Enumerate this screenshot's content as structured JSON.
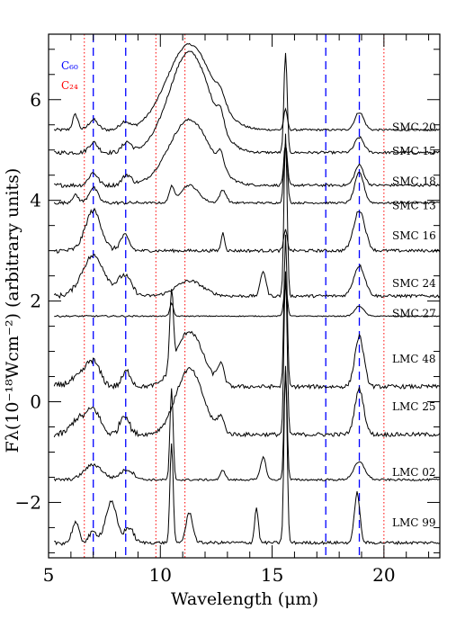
{
  "chart_data": {
    "type": "line",
    "title": "",
    "xlabel": "Wavelength (μm)",
    "ylabel": "Fλ(10⁻¹⁸Wcm⁻²) (arbitrary units)",
    "xlim": [
      5,
      22.5
    ],
    "ylim": [
      -3.1,
      7.3
    ],
    "x_ticks": [
      5,
      10,
      15,
      20
    ],
    "y_ticks": [
      -2,
      0,
      2,
      4,
      6
    ],
    "x_tick_labels": [
      "5",
      "10",
      "15",
      "20"
    ],
    "y_tick_labels": [
      "−2",
      "0",
      "2",
      "4",
      "6"
    ],
    "grid": false,
    "legend": {
      "placement": "top-left",
      "entries": [
        {
          "name": "C₆₀",
          "color": "#0000ff",
          "style": "dashed"
        },
        {
          "name": "C₂₄",
          "color": "#ff0000",
          "style": "dotted"
        }
      ]
    },
    "reference_lines": [
      {
        "group": "C60",
        "x": 7.0,
        "color": "#0000ff",
        "style": "dashed"
      },
      {
        "group": "C60",
        "x": 8.45,
        "color": "#0000ff",
        "style": "dashed"
      },
      {
        "group": "C60",
        "x": 17.4,
        "color": "#0000ff",
        "style": "dashed"
      },
      {
        "group": "C60",
        "x": 18.9,
        "color": "#0000ff",
        "style": "dashed"
      },
      {
        "group": "C24",
        "x": 6.6,
        "color": "#ff0000",
        "style": "dotted"
      },
      {
        "group": "C24",
        "x": 9.8,
        "color": "#ff0000",
        "style": "dotted"
      },
      {
        "group": "C24",
        "x": 11.1,
        "color": "#ff0000",
        "style": "dotted"
      },
      {
        "group": "C24",
        "x": 20.0,
        "color": "#ff0000",
        "style": "dotted"
      }
    ],
    "series": [
      {
        "name": "SMC 20",
        "baseline": 5.4,
        "features": [
          [
            6.2,
            0.3,
            0.12
          ],
          [
            7.0,
            0.2,
            0.2
          ],
          [
            8.4,
            0.15,
            0.2
          ],
          [
            11.3,
            1.7,
            1.0
          ],
          [
            12.7,
            0.2,
            0.2
          ],
          [
            15.6,
            0.4,
            0.08
          ],
          [
            18.9,
            0.35,
            0.2
          ]
        ],
        "noise": 0.04,
        "label_y": 5.45
      },
      {
        "name": "SMC 15",
        "baseline": 4.95,
        "features": [
          [
            7.0,
            0.2,
            0.2
          ],
          [
            8.5,
            0.2,
            0.2
          ],
          [
            11.3,
            2.0,
            0.9
          ],
          [
            12.7,
            0.3,
            0.15
          ],
          [
            15.6,
            2.0,
            0.07
          ],
          [
            18.9,
            0.3,
            0.2
          ]
        ],
        "noise": 0.05,
        "label_y": 4.98
      },
      {
        "name": "SMC 18",
        "baseline": 4.3,
        "features": [
          [
            7.0,
            0.25,
            0.2
          ],
          [
            8.5,
            0.2,
            0.2
          ],
          [
            11.3,
            1.3,
            0.9
          ],
          [
            12.7,
            0.3,
            0.15
          ],
          [
            15.6,
            0.8,
            0.08
          ],
          [
            18.9,
            0.4,
            0.2
          ]
        ],
        "noise": 0.05,
        "label_y": 4.38
      },
      {
        "name": "SMC 13",
        "baseline": 3.95,
        "features": [
          [
            6.2,
            0.15,
            0.15
          ],
          [
            7.0,
            0.3,
            0.2
          ],
          [
            10.5,
            0.3,
            0.1
          ],
          [
            11.3,
            0.35,
            0.4
          ],
          [
            12.8,
            0.25,
            0.15
          ],
          [
            15.6,
            1.2,
            0.08
          ],
          [
            18.9,
            0.6,
            0.2
          ]
        ],
        "noise": 0.04,
        "label_y": 3.9
      },
      {
        "name": "SMC 16",
        "baseline": 3.0,
        "features": [
          [
            7.0,
            0.8,
            0.35
          ],
          [
            8.4,
            0.3,
            0.2
          ],
          [
            12.8,
            0.35,
            0.08
          ],
          [
            15.6,
            0.4,
            0.08
          ],
          [
            18.9,
            0.8,
            0.25
          ]
        ],
        "noise": 0.06,
        "label_y": 3.3
      },
      {
        "name": "SMC 24",
        "baseline": 2.1,
        "features": [
          [
            7.0,
            0.8,
            0.5
          ],
          [
            8.4,
            0.4,
            0.3
          ],
          [
            11.3,
            0.3,
            0.6
          ],
          [
            14.6,
            0.5,
            0.12
          ],
          [
            15.6,
            3.2,
            0.07
          ],
          [
            18.9,
            0.6,
            0.25
          ]
        ],
        "noise": 0.06,
        "label_y": 2.35
      },
      {
        "name": "SMC 27",
        "baseline": 1.7,
        "features": [
          [
            10.5,
            0.25,
            0.08
          ],
          [
            15.6,
            0.6,
            0.08
          ],
          [
            18.9,
            0.2,
            0.2
          ]
        ],
        "noise": 0.02,
        "label_y": 1.75
      },
      {
        "name": "LMC 48",
        "baseline": 0.3,
        "features": [
          [
            6.5,
            0.2,
            0.5
          ],
          [
            7.0,
            0.4,
            0.3
          ],
          [
            8.5,
            0.3,
            0.2
          ],
          [
            10.5,
            1.5,
            0.08
          ],
          [
            11.3,
            1.1,
            0.6
          ],
          [
            12.7,
            0.4,
            0.15
          ],
          [
            15.6,
            3.0,
            0.07
          ],
          [
            18.9,
            1.0,
            0.2
          ]
        ],
        "noise": 0.08,
        "label_y": 0.85
      },
      {
        "name": "LMC 25",
        "baseline": -0.65,
        "features": [
          [
            6.3,
            0.3,
            0.3
          ],
          [
            7.0,
            0.5,
            0.3
          ],
          [
            8.4,
            0.4,
            0.2
          ],
          [
            11.3,
            1.3,
            0.6
          ],
          [
            12.7,
            0.3,
            0.15
          ],
          [
            15.6,
            3.2,
            0.07
          ],
          [
            18.9,
            0.9,
            0.2
          ]
        ],
        "noise": 0.08,
        "label_y": -0.1
      },
      {
        "name": "LMC 02",
        "baseline": -1.55,
        "features": [
          [
            7.0,
            0.3,
            0.4
          ],
          [
            8.5,
            0.2,
            0.3
          ],
          [
            10.5,
            1.8,
            0.07
          ],
          [
            12.8,
            0.2,
            0.1
          ],
          [
            14.6,
            0.45,
            0.12
          ],
          [
            15.6,
            2.2,
            0.07
          ],
          [
            18.9,
            0.35,
            0.25
          ]
        ],
        "noise": 0.04,
        "label_y": -1.4
      },
      {
        "name": "LMC 99",
        "baseline": -2.8,
        "features": [
          [
            6.2,
            0.4,
            0.15
          ],
          [
            7.0,
            0.2,
            0.2
          ],
          [
            7.8,
            0.8,
            0.25
          ],
          [
            8.6,
            0.3,
            0.2
          ],
          [
            10.5,
            2.0,
            0.07
          ],
          [
            11.3,
            0.6,
            0.15
          ],
          [
            14.3,
            0.7,
            0.08
          ],
          [
            15.6,
            3.5,
            0.07
          ],
          [
            18.8,
            1.0,
            0.12
          ]
        ],
        "noise": 0.06,
        "label_y": -2.4
      }
    ]
  }
}
